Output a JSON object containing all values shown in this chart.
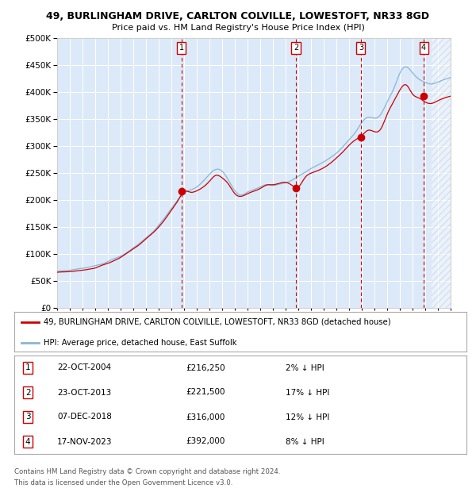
{
  "title1": "49, BURLINGHAM DRIVE, CARLTON COLVILLE, LOWESTOFT, NR33 8GD",
  "title2": "Price paid vs. HM Land Registry's House Price Index (HPI)",
  "legend1": "49, BURLINGHAM DRIVE, CARLTON COLVILLE, LOWESTOFT, NR33 8GD (detached house)",
  "legend2": "HPI: Average price, detached house, East Suffolk",
  "footer1": "Contains HM Land Registry data © Crown copyright and database right 2024.",
  "footer2": "This data is licensed under the Open Government Licence v3.0.",
  "transactions": [
    {
      "num": 1,
      "date_x": 2004.81,
      "price": 216250,
      "label": "22-OCT-2004",
      "amount": "£216,250",
      "pct": "2% ↓ HPI"
    },
    {
      "num": 2,
      "date_x": 2013.81,
      "price": 221500,
      "label": "23-OCT-2013",
      "amount": "£221,500",
      "pct": "17% ↓ HPI"
    },
    {
      "num": 3,
      "date_x": 2018.93,
      "price": 316000,
      "label": "07-DEC-2018",
      "amount": "£316,000",
      "pct": "12% ↓ HPI"
    },
    {
      "num": 4,
      "date_x": 2023.88,
      "price": 392000,
      "label": "17-NOV-2023",
      "amount": "£392,000",
      "pct": "8% ↓ HPI"
    }
  ],
  "xmin": 1995.0,
  "xmax": 2026.0,
  "ymin": 0,
  "ymax": 500000,
  "yticks": [
    0,
    50000,
    100000,
    150000,
    200000,
    250000,
    300000,
    350000,
    400000,
    450000,
    500000
  ],
  "background_color": "#dce9f8",
  "grid_color": "#ffffff",
  "line_color_red": "#cc0000",
  "line_color_blue": "#8ab4d8",
  "dot_color": "#cc0000",
  "dashed_line_color": "#cc0000",
  "hatch_color": "#b8cce0",
  "hpi_years": [
    1995.0,
    1995.5,
    1996.0,
    1996.5,
    1997.0,
    1997.5,
    1998.0,
    1998.5,
    1999.0,
    1999.5,
    2000.0,
    2000.5,
    2001.0,
    2001.5,
    2002.0,
    2002.5,
    2003.0,
    2003.5,
    2004.0,
    2004.5,
    2005.0,
    2005.5,
    2006.0,
    2006.5,
    2007.0,
    2007.5,
    2008.0,
    2008.5,
    2009.0,
    2009.5,
    2010.0,
    2010.5,
    2011.0,
    2011.5,
    2012.0,
    2012.5,
    2013.0,
    2013.5,
    2014.0,
    2014.5,
    2015.0,
    2015.5,
    2016.0,
    2016.5,
    2017.0,
    2017.5,
    2018.0,
    2018.5,
    2019.0,
    2019.5,
    2020.0,
    2020.5,
    2021.0,
    2021.5,
    2022.0,
    2022.5,
    2023.0,
    2023.5,
    2024.0,
    2024.5,
    2025.0,
    2025.5,
    2026.0
  ],
  "hpi_values": [
    68000,
    69000,
    70000,
    72000,
    74000,
    76000,
    79000,
    83000,
    87000,
    92000,
    97000,
    104000,
    112000,
    121000,
    131000,
    142000,
    155000,
    170000,
    186000,
    203000,
    215000,
    220000,
    226000,
    235000,
    248000,
    258000,
    255000,
    240000,
    220000,
    212000,
    218000,
    222000,
    228000,
    232000,
    232000,
    235000,
    238000,
    242000,
    248000,
    255000,
    262000,
    268000,
    274000,
    282000,
    292000,
    305000,
    318000,
    330000,
    348000,
    358000,
    355000,
    362000,
    385000,
    408000,
    438000,
    450000,
    440000,
    428000,
    422000,
    418000,
    422000,
    428000,
    432000
  ],
  "red_years": [
    1995.0,
    1995.5,
    1996.0,
    1996.5,
    1997.0,
    1997.5,
    1998.0,
    1998.5,
    1999.0,
    1999.5,
    2000.0,
    2000.5,
    2001.0,
    2001.5,
    2002.0,
    2002.5,
    2003.0,
    2003.5,
    2004.0,
    2004.5,
    2005.0,
    2005.5,
    2006.0,
    2006.5,
    2007.0,
    2007.5,
    2008.0,
    2008.5,
    2009.0,
    2009.5,
    2010.0,
    2010.5,
    2011.0,
    2011.5,
    2012.0,
    2012.5,
    2013.0,
    2013.5,
    2014.0,
    2014.5,
    2015.0,
    2015.5,
    2016.0,
    2016.5,
    2017.0,
    2017.5,
    2018.0,
    2018.5,
    2019.0,
    2019.5,
    2020.0,
    2020.5,
    2021.0,
    2021.5,
    2022.0,
    2022.5,
    2023.0,
    2023.5,
    2024.0,
    2024.5,
    2025.0,
    2025.5,
    2026.0
  ],
  "red_values": [
    66000,
    67000,
    68000,
    70000,
    72000,
    74000,
    77000,
    81000,
    85000,
    90000,
    95000,
    102000,
    110000,
    118000,
    128000,
    138000,
    151000,
    165000,
    181000,
    198000,
    216000,
    215000,
    218000,
    225000,
    235000,
    245000,
    240000,
    228000,
    210000,
    205000,
    210000,
    215000,
    220000,
    225000,
    225000,
    228000,
    230000,
    225000,
    221500,
    238000,
    248000,
    252000,
    258000,
    265000,
    275000,
    285000,
    298000,
    308000,
    316000,
    325000,
    322000,
    328000,
    355000,
    378000,
    400000,
    410000,
    392000,
    385000,
    378000,
    375000,
    380000,
    385000,
    388000
  ]
}
